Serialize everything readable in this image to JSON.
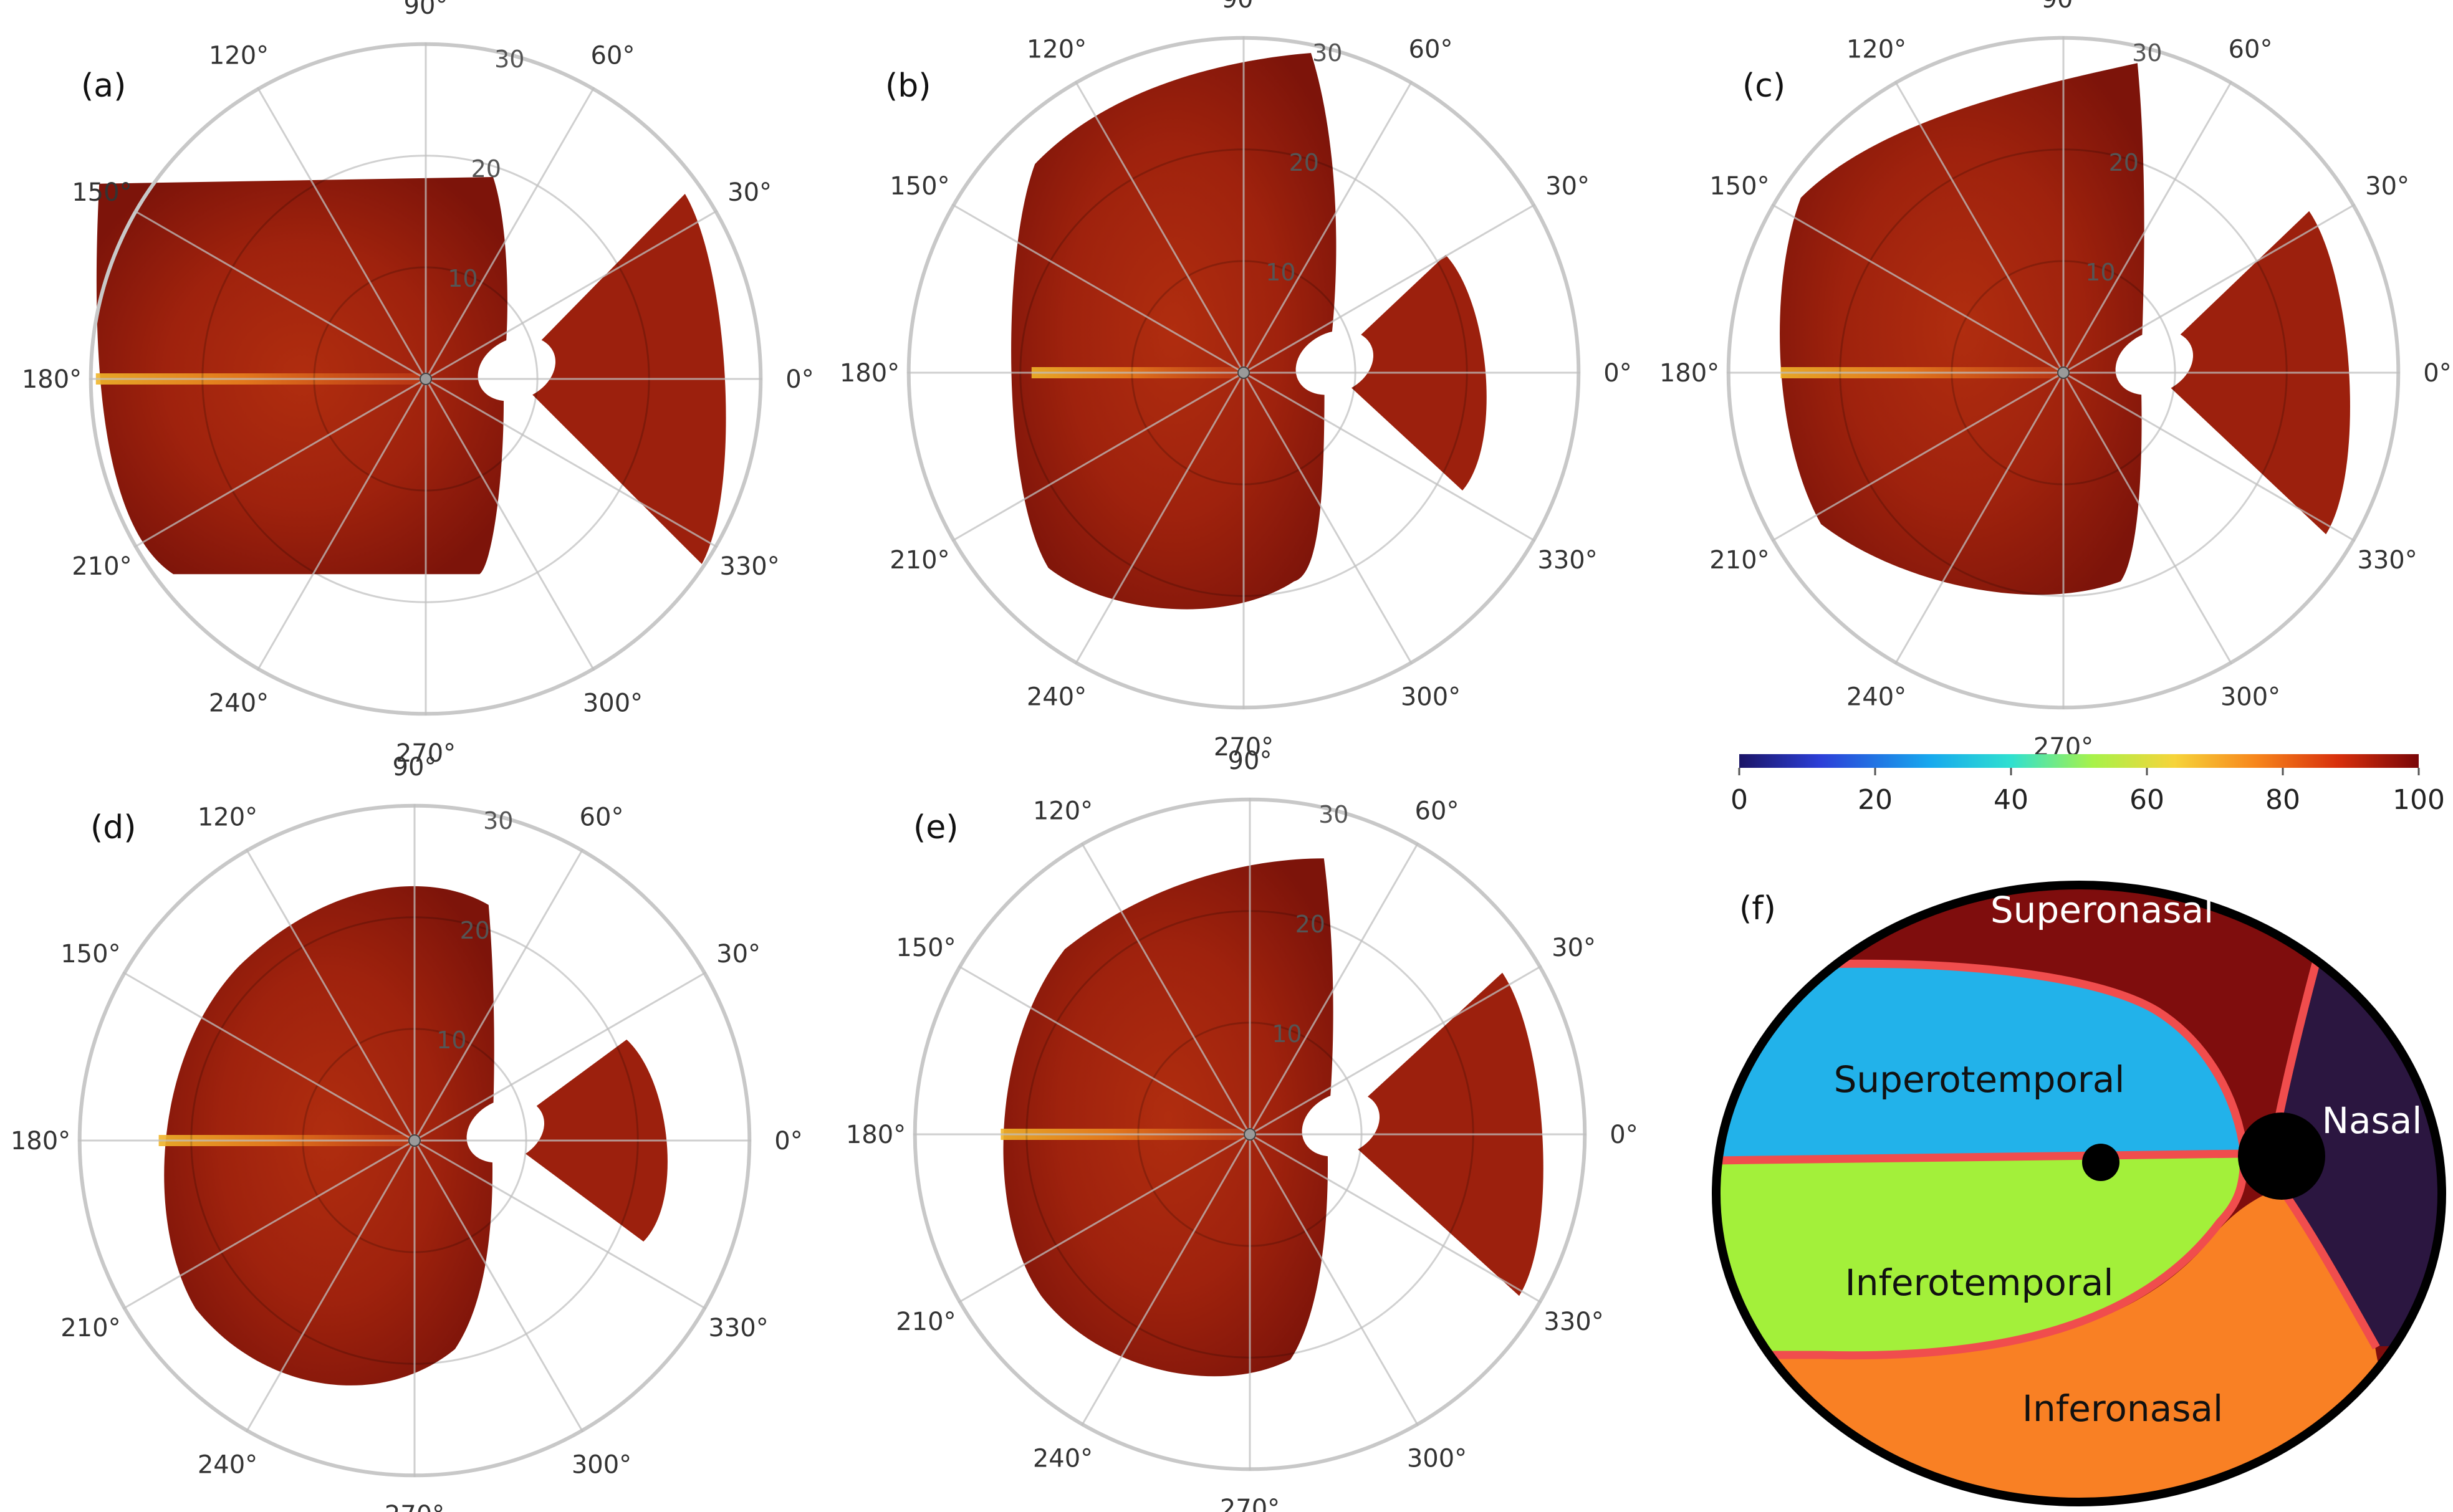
{
  "panels": [
    {
      "label": "(a)"
    },
    {
      "label": "(b)"
    },
    {
      "label": "(c)"
    },
    {
      "label": "(d)"
    },
    {
      "label": "(e)"
    }
  ],
  "polar": {
    "angle_labels": [
      "0°",
      "30°",
      "60°",
      "90°",
      "120°",
      "150°",
      "180°",
      "210°",
      "240°",
      "270°",
      "300°",
      "330°"
    ],
    "angles_deg": [
      0,
      30,
      60,
      90,
      120,
      150,
      180,
      210,
      240,
      270,
      300,
      330
    ],
    "radial_ticks": [
      "10",
      "20",
      "30"
    ],
    "radial_values": [
      10,
      20,
      30
    ],
    "r_max": 30
  },
  "chart_data": {
    "type": "heatmap",
    "colorbar": {
      "min": 0,
      "max": 100,
      "ticks": [
        "0",
        "20",
        "40",
        "60",
        "80",
        "100"
      ],
      "colormap": "jet"
    },
    "panels": [
      "(a)",
      "(b)",
      "(c)",
      "(d)",
      "(e)"
    ],
    "dominant_color": "#a32410"
  },
  "sector_map": {
    "label": "(f)",
    "regions": [
      {
        "name": "Superonasal",
        "color": "#7f0d0d"
      },
      {
        "name": "Superotemporal",
        "color": "#22b2ea"
      },
      {
        "name": "Nasal",
        "color": "#2b1640"
      },
      {
        "name": "Inferotemporal",
        "color": "#a3f03a"
      },
      {
        "name": "Inferonasal",
        "color": "#f98024"
      }
    ],
    "boundary_color": "#f04d4d"
  }
}
